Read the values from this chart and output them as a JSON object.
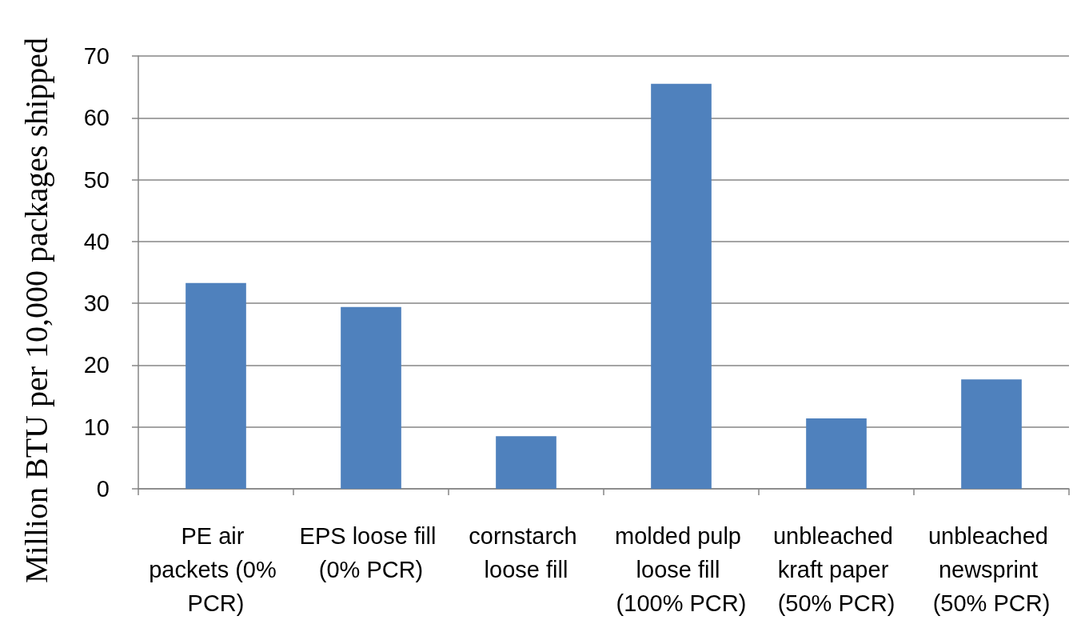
{
  "chart_data": {
    "type": "bar",
    "ylabel": "Million BTU per 10,000 packages shipped",
    "categories": [
      "PE air packets (0% PCR)",
      "EPS loose fill (0% PCR)",
      "cornstarch loose fill",
      "molded pulp loose fill (100% PCR)",
      "unbleached kraft paper (50% PCR)",
      "unbleached newsprint (50% PCR)"
    ],
    "values": [
      33.3,
      29.4,
      8.5,
      65.5,
      11.4,
      17.7
    ],
    "color": "#4f81bd",
    "ylim": [
      0,
      70
    ],
    "yticks": [
      0,
      10,
      20,
      30,
      40,
      50,
      60,
      70
    ],
    "grid": "y"
  }
}
